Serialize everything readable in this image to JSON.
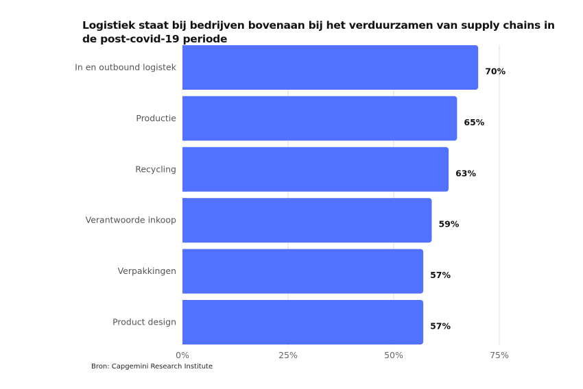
{
  "chart_data": {
    "type": "bar",
    "orientation": "horizontal",
    "title": "Logistiek staat bij bedrijven bovenaan bij het verduurzamen van supply chains in de post-covid-19 periode",
    "source": "Bron: Capgemini Research Institute",
    "categories": [
      "In en outbound logistek",
      "Productie",
      "Recycling",
      "Verantwoorde inkoop",
      "Verpakkingen",
      "Product design"
    ],
    "values": [
      70,
      65,
      63,
      59,
      57,
      57
    ],
    "value_labels": [
      "70%",
      "65%",
      "63%",
      "59%",
      "57%",
      "57%"
    ],
    "xlim": [
      0,
      75
    ],
    "xticks": [
      0,
      25,
      50,
      75
    ],
    "xtick_labels": [
      "0%",
      "25%",
      "50%",
      "75%"
    ],
    "grid": "vertical",
    "bar_color": "#5271FF"
  }
}
